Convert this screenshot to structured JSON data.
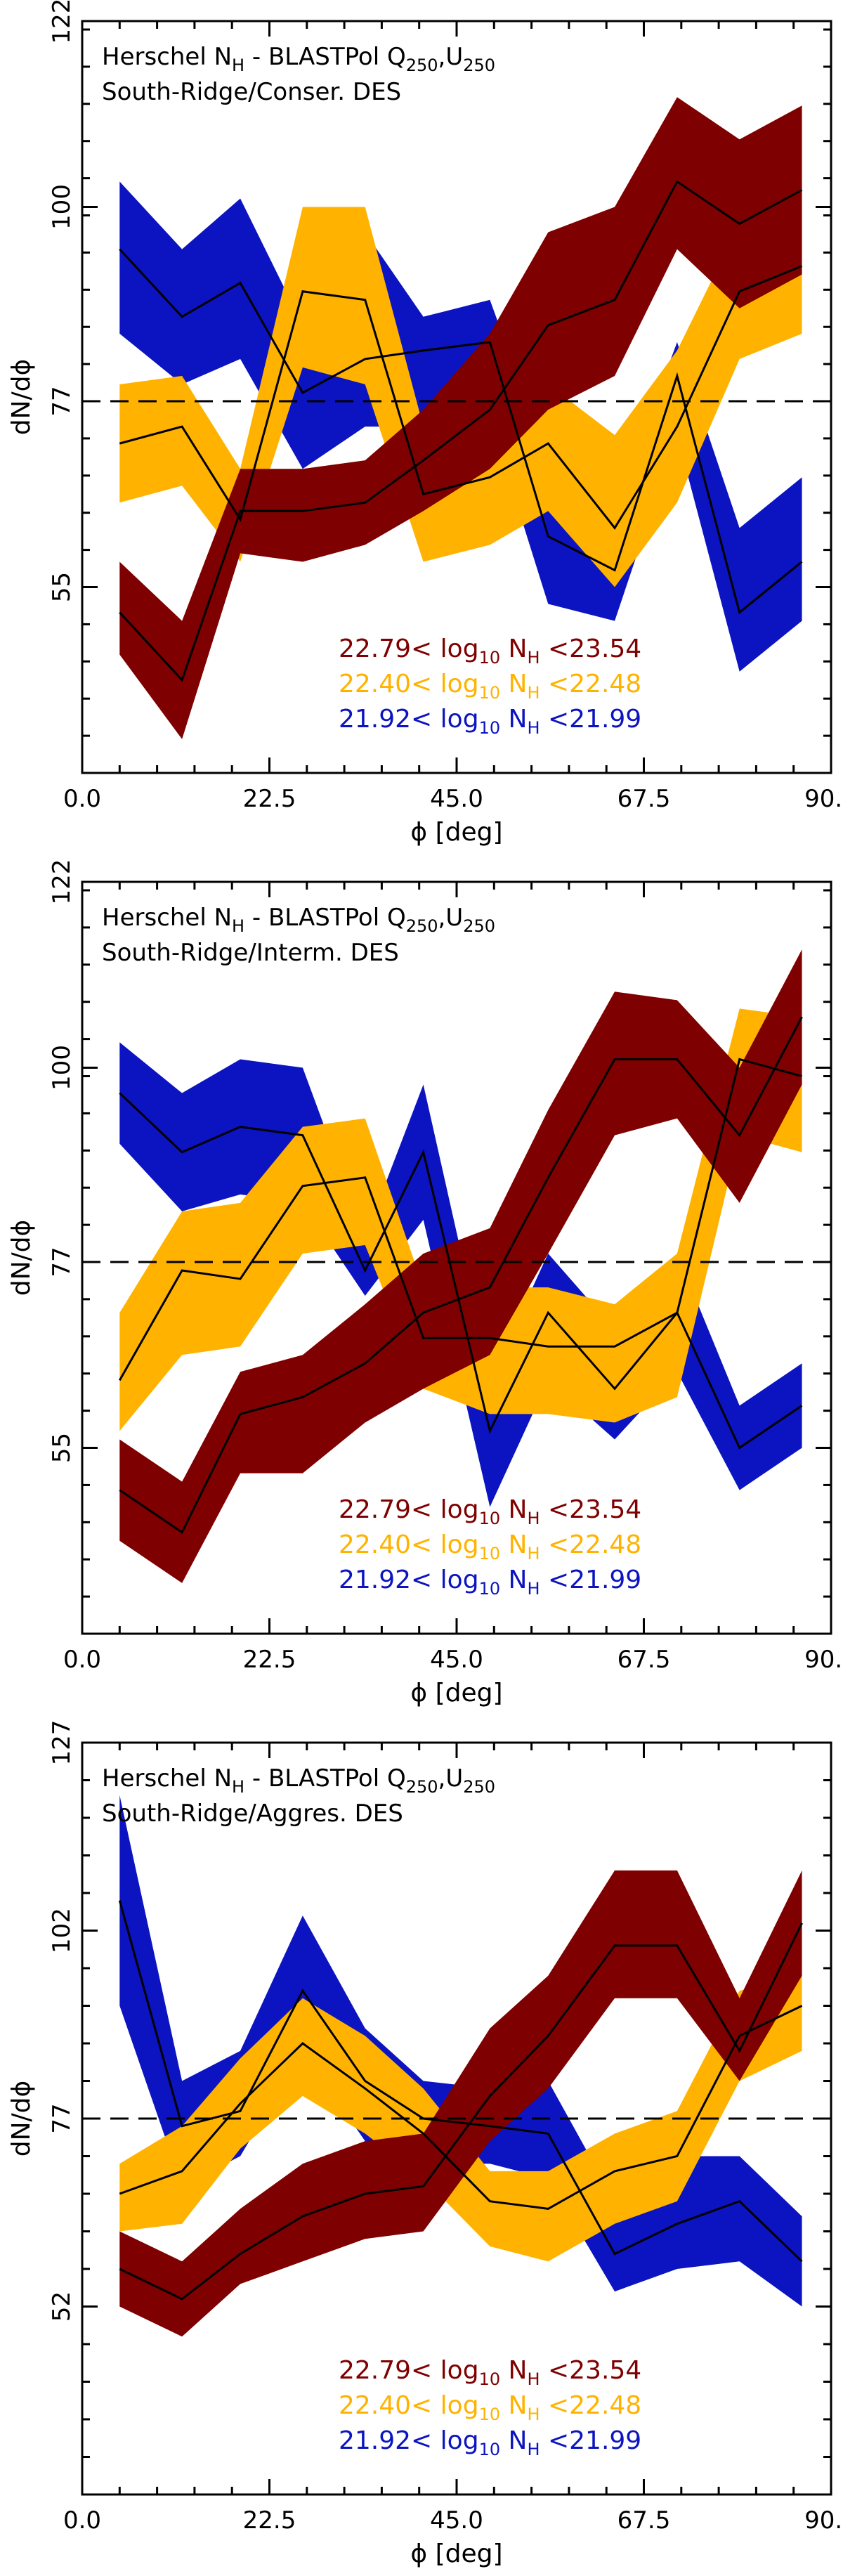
{
  "colors": {
    "red": "#7f0000",
    "orange": "#ffb300",
    "blue": "#0b14c0",
    "line": "#000000"
  },
  "chart_data": [
    {
      "type": "area",
      "title": "Herschel N_H - BLASTPol Q_250,U_250",
      "title_parts": {
        "a": "Herschel N",
        "a_sub": "H",
        "b": " - BLASTPol Q",
        "b_sub": "250",
        "c": ",U",
        "c_sub": "250"
      },
      "subtitle": "South-Ridge/Conser. DES",
      "xlabel": "ϕ [deg]",
      "ylabel": "dN/dϕ",
      "xlim": [
        0,
        90
      ],
      "ylim": [
        33,
        122
      ],
      "xticks": [
        0,
        22.5,
        45,
        67.5,
        90
      ],
      "xtick_labels": [
        "0.0",
        "22.5",
        "45.0",
        "67.5",
        "90.0"
      ],
      "yticks": [
        55,
        77,
        100,
        122
      ],
      "reference_line": 77,
      "x": [
        4.5,
        12,
        19,
        26.5,
        34,
        41,
        49,
        56,
        64,
        71.5,
        79,
        86.5
      ],
      "series": [
        {
          "name": "22.79< log10 NH <23.54",
          "color": "red",
          "mean": [
            52,
            44,
            64,
            64,
            65,
            70,
            76,
            86,
            89,
            103,
            98,
            102
          ],
          "upper": [
            58,
            51,
            69,
            69,
            70,
            76,
            85,
            97,
            100,
            113,
            108,
            112
          ],
          "lower": [
            47,
            37,
            59,
            58,
            60,
            64,
            69,
            76,
            80,
            95,
            88,
            92
          ]
        },
        {
          "name": "22.40< log10 NH <22.48",
          "color": "orange",
          "mean": [
            72,
            74,
            63,
            90,
            89,
            66,
            68,
            72,
            62,
            74,
            90,
            93
          ],
          "upper": [
            79,
            80,
            69,
            100,
            100,
            74,
            76,
            79,
            73,
            83,
            98,
            101
          ],
          "lower": [
            65,
            67,
            58,
            81,
            79,
            58,
            60,
            64,
            55,
            65,
            82,
            85
          ]
        },
        {
          "name": "21.92< log10 NH <21.99",
          "color": "blue",
          "mean": [
            95,
            87,
            91,
            78,
            82,
            83,
            84,
            61,
            57,
            80,
            52,
            58
          ],
          "upper": [
            103,
            95,
            101,
            86,
            97,
            87,
            89,
            70,
            64,
            84,
            62,
            68
          ],
          "lower": [
            85,
            79,
            82,
            69,
            74,
            74,
            75,
            53,
            51,
            73,
            45,
            51
          ]
        }
      ],
      "legend": [
        {
          "prefix": "22.79<",
          "sub": "10",
          "suffix": "<23.54",
          "color": "red"
        },
        {
          "prefix": "22.40<",
          "sub": "10",
          "suffix": "<22.48",
          "color": "orange"
        },
        {
          "prefix": "21.92<",
          "sub": "10",
          "suffix": "<21.99",
          "color": "blue"
        }
      ]
    },
    {
      "type": "area",
      "title": "Herschel N_H - BLASTPol Q_250,U_250",
      "title_parts": {
        "a": "Herschel N",
        "a_sub": "H",
        "b": " - BLASTPol Q",
        "b_sub": "250",
        "c": ",U",
        "c_sub": "250"
      },
      "subtitle": "South-Ridge/Interm. DES",
      "xlabel": "ϕ [deg]",
      "ylabel": "dN/dϕ",
      "xlim": [
        0,
        90
      ],
      "ylim": [
        33,
        122
      ],
      "xticks": [
        0,
        22.5,
        45,
        67.5,
        90
      ],
      "xtick_labels": [
        "0.0",
        "22.5",
        "45.0",
        "67.5",
        "90.0"
      ],
      "yticks": [
        55,
        77,
        100,
        122
      ],
      "reference_line": 77,
      "x": [
        4.5,
        12,
        19,
        26.5,
        34,
        41,
        49,
        56,
        64,
        71.5,
        79,
        86.5
      ],
      "series": [
        {
          "name": "22.79< log10 NH <23.54",
          "color": "red",
          "mean": [
            50,
            45,
            59,
            61,
            65,
            71,
            74,
            87,
            101,
            101,
            92,
            106
          ],
          "upper": [
            56,
            51,
            64,
            66,
            72,
            78,
            81,
            95,
            109,
            108,
            100,
            114
          ],
          "lower": [
            44,
            39,
            52,
            52,
            58,
            62,
            66,
            78,
            92,
            94,
            84,
            98
          ]
        },
        {
          "name": "22.40< log10 NH <22.48",
          "color": "orange",
          "mean": [
            63,
            76,
            75,
            86,
            87,
            68,
            68,
            67,
            67,
            71,
            101,
            99
          ],
          "upper": [
            71,
            83,
            84,
            93,
            94,
            74,
            74,
            74,
            72,
            78,
            107,
            106
          ],
          "lower": [
            57,
            66,
            67,
            78,
            79,
            62,
            59,
            59,
            58,
            61,
            92,
            90
          ]
        },
        {
          "name": "21.92< log10 NH <21.99",
          "color": "blue",
          "mean": [
            97,
            90,
            93,
            92,
            76,
            90,
            57,
            71,
            62,
            71,
            55,
            60
          ],
          "upper": [
            103,
            97,
            101,
            100,
            80,
            98,
            63,
            78,
            69,
            78,
            60,
            65
          ],
          "lower": [
            91,
            83,
            85,
            84,
            73,
            82,
            48,
            63,
            56,
            64,
            50,
            55
          ]
        }
      ],
      "legend": [
        {
          "prefix": "22.79<",
          "sub": "10",
          "suffix": "<23.54",
          "color": "red"
        },
        {
          "prefix": "22.40<",
          "sub": "10",
          "suffix": "<22.48",
          "color": "orange"
        },
        {
          "prefix": "21.92<",
          "sub": "10",
          "suffix": "<21.99",
          "color": "blue"
        }
      ]
    },
    {
      "type": "area",
      "title": "Herschel N_H - BLASTPol Q_250,U_250",
      "title_parts": {
        "a": "Herschel N",
        "a_sub": "H",
        "b": " - BLASTPol Q",
        "b_sub": "250",
        "c": ",U",
        "c_sub": "250"
      },
      "subtitle": "South-Ridge/Aggres. DES",
      "xlabel": "ϕ [deg]",
      "ylabel": "dN/dϕ",
      "xlim": [
        0,
        90
      ],
      "ylim": [
        27,
        127
      ],
      "xticks": [
        0,
        22.5,
        45,
        67.5,
        90
      ],
      "xtick_labels": [
        "0.0",
        "22.5",
        "45.0",
        "67.5",
        "90.0"
      ],
      "yticks": [
        52,
        77,
        102,
        127
      ],
      "reference_line": 77,
      "x": [
        4.5,
        12,
        19,
        26.5,
        34,
        41,
        49,
        56,
        64,
        71.5,
        79,
        86.5
      ],
      "series": [
        {
          "name": "22.79< log10 NH <23.54",
          "color": "red",
          "mean": [
            57,
            53,
            59,
            64,
            67,
            68,
            80,
            88,
            100,
            100,
            86,
            103
          ],
          "upper": [
            62,
            58,
            65,
            71,
            74,
            75,
            89,
            96,
            110,
            110,
            93,
            110
          ],
          "lower": [
            52,
            48,
            55,
            58,
            61,
            62,
            74,
            81,
            93,
            93,
            82,
            96
          ]
        },
        {
          "name": "22.40< log10 NH <22.48",
          "color": "orange",
          "mean": [
            67,
            70,
            79,
            87,
            81,
            75,
            66,
            65,
            70,
            72,
            88,
            92
          ],
          "upper": [
            71,
            76,
            85,
            93,
            88,
            81,
            70,
            70,
            75,
            78,
            94,
            96
          ],
          "lower": [
            62,
            63,
            73,
            80,
            75,
            69,
            60,
            58,
            63,
            66,
            82,
            86
          ]
        },
        {
          "name": "21.92< log10 NH <21.99",
          "color": "blue",
          "mean": [
            106,
            76,
            78,
            94,
            82,
            77,
            76,
            75,
            59,
            63,
            66,
            58
          ],
          "upper": [
            120,
            82,
            86,
            104,
            89,
            82,
            81,
            82,
            66,
            72,
            72,
            64
          ],
          "lower": [
            92,
            68,
            72,
            86,
            74,
            71,
            71,
            69,
            54,
            57,
            58,
            52
          ]
        }
      ],
      "legend": [
        {
          "prefix": "22.79<",
          "sub": "10",
          "suffix": "<23.54",
          "color": "red"
        },
        {
          "prefix": "22.40<",
          "sub": "10",
          "suffix": "<22.48",
          "color": "orange"
        },
        {
          "prefix": "21.92<",
          "sub": "10",
          "suffix": "<21.99",
          "color": "blue"
        }
      ]
    }
  ]
}
